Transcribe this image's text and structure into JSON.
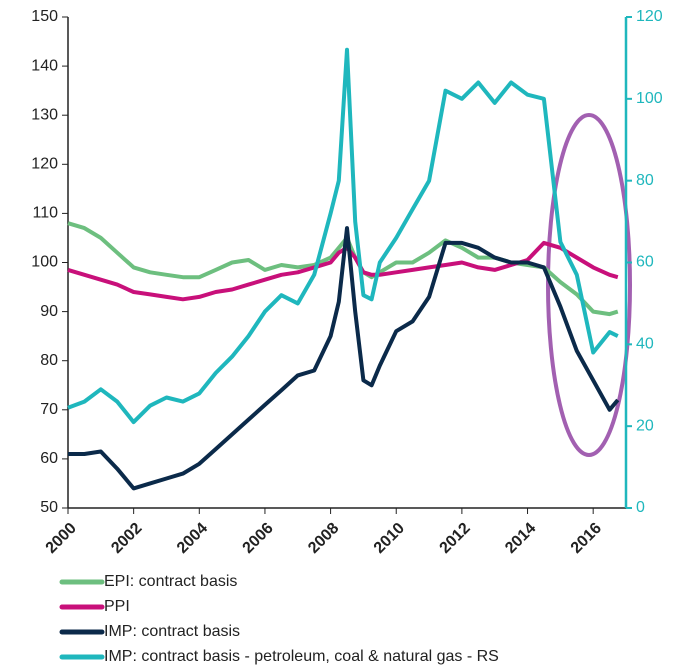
{
  "chart_data": {
    "type": "line",
    "x": [
      2000,
      2000.5,
      2001,
      2001.5,
      2002,
      2002.5,
      2003,
      2003.5,
      2004,
      2004.5,
      2005,
      2005.5,
      2006,
      2006.5,
      2007,
      2007.5,
      2008,
      2008.25,
      2008.5,
      2008.75,
      2009,
      2009.25,
      2009.5,
      2010,
      2010.5,
      2011,
      2011.5,
      2012,
      2012.5,
      2013,
      2013.5,
      2014,
      2014.5,
      2015,
      2015.5,
      2016,
      2016.5,
      2016.75
    ],
    "series": [
      {
        "name": "EPI: contract basis",
        "color": "#6dbf7f",
        "values": [
          108,
          107,
          105,
          102,
          99,
          98,
          97.5,
          97,
          97,
          98.5,
          100,
          100.5,
          98.5,
          99.5,
          99,
          99.5,
          101,
          103,
          105,
          101,
          98,
          97,
          98,
          100,
          100,
          102,
          104.5,
          103,
          101,
          101,
          100,
          99.5,
          99,
          96,
          93.5,
          90,
          89.5,
          90
        ]
      },
      {
        "name": "PPI",
        "color": "#c8107a",
        "values": [
          98.5,
          97.5,
          96.5,
          95.5,
          94,
          93.5,
          93,
          92.5,
          93,
          94,
          94.5,
          95.5,
          96.5,
          97.5,
          98,
          99,
          100,
          102,
          103,
          101,
          98,
          97.5,
          97.5,
          98,
          98.5,
          99,
          99.5,
          100,
          99,
          98.5,
          99.5,
          100.5,
          104,
          103,
          101,
          99,
          97.5,
          97
        ]
      },
      {
        "name": "IMP: contract basis",
        "color": "#0b2a4a",
        "values": [
          61,
          61,
          61.5,
          58,
          54,
          55,
          56,
          57,
          59,
          62,
          65,
          68,
          71,
          74,
          77,
          78,
          85,
          92,
          107,
          90,
          76,
          75,
          79,
          86,
          88,
          93,
          104,
          104,
          103,
          101,
          100,
          100,
          99,
          91,
          82,
          76,
          70,
          72
        ]
      },
      {
        "name": "IMP: contract basis - petroleum, coal & natural gas - RS",
        "color": "#1fb7bd",
        "axis": "y2",
        "values": [
          24.5,
          26,
          29,
          26,
          21,
          25,
          27,
          26,
          28,
          33,
          37,
          42,
          48,
          52,
          50,
          57,
          72,
          80,
          112,
          70,
          52,
          51,
          60,
          66,
          73,
          80,
          102,
          100,
          104,
          99,
          104,
          101,
          100,
          65,
          57,
          38,
          43,
          42
        ]
      }
    ],
    "xlim": [
      2000,
      2017
    ],
    "xticks": [
      2000,
      2002,
      2004,
      2006,
      2008,
      2010,
      2012,
      2014,
      2016
    ],
    "ylim": [
      50,
      150
    ],
    "yticks": [
      50,
      60,
      70,
      80,
      90,
      100,
      110,
      120,
      130,
      140,
      150
    ],
    "y2lim": [
      0,
      120
    ],
    "y2ticks": [
      0,
      20,
      40,
      60,
      80,
      100,
      120
    ],
    "y2color": "#1fb7bd"
  }
}
